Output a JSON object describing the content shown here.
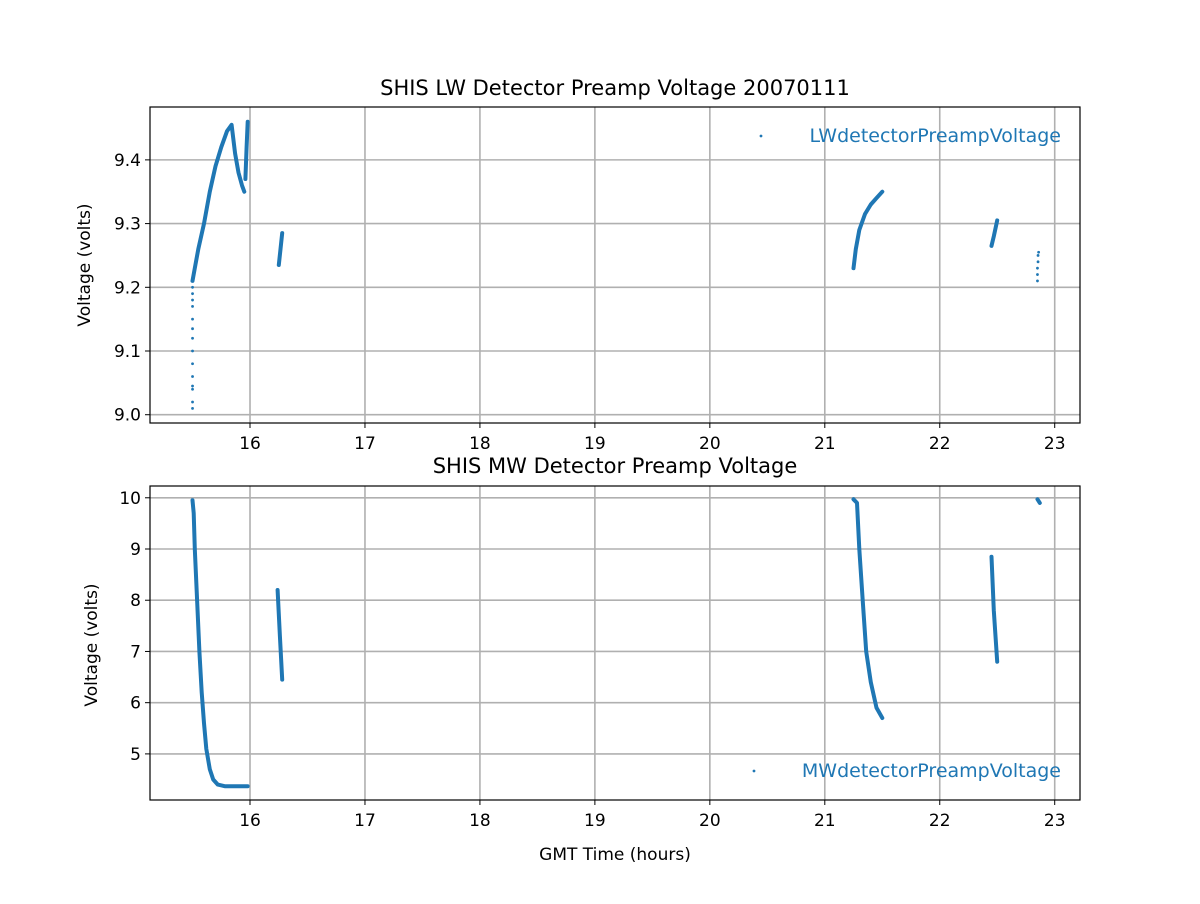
{
  "chart_data": [
    {
      "type": "scatter",
      "title": "SHIS LW Detector Preamp Voltage 20070111",
      "xlabel": "",
      "ylabel": "Voltage (volts)",
      "xlim": [
        15.13,
        23.22
      ],
      "ylim": [
        8.987,
        9.483
      ],
      "xticks": [
        16,
        17,
        18,
        19,
        20,
        21,
        22,
        23
      ],
      "yticks": [
        9.0,
        9.1,
        9.2,
        9.3,
        9.4
      ],
      "ytick_labels": [
        "9.0",
        "9.1",
        "9.2",
        "9.3",
        "9.4"
      ],
      "grid": true,
      "legend": {
        "label": "LWdetectorPreampVoltage",
        "placement": "top-right"
      },
      "color": "#1f77b4",
      "series": [
        {
          "name": "LWdetectorPreampVoltage",
          "segments": [
            {
              "style": "dots",
              "x": [
                15.5,
                15.5,
                15.5,
                15.5,
                15.5,
                15.5,
                15.5,
                15.5,
                15.5,
                15.5,
                15.5,
                15.5,
                15.5,
                15.5
              ],
              "y": [
                9.01,
                9.02,
                9.04,
                9.045,
                9.06,
                9.08,
                9.1,
                9.12,
                9.135,
                9.15,
                9.17,
                9.18,
                9.19,
                9.2
              ]
            },
            {
              "style": "line",
              "x": [
                15.5,
                15.52,
                15.55,
                15.6,
                15.65,
                15.7,
                15.75,
                15.8,
                15.84,
                15.87,
                15.9,
                15.93,
                15.95
              ],
              "y": [
                9.21,
                9.23,
                9.26,
                9.3,
                9.35,
                9.39,
                9.42,
                9.445,
                9.455,
                9.41,
                9.38,
                9.36,
                9.35
              ]
            },
            {
              "style": "line",
              "x": [
                15.96,
                15.97,
                15.98
              ],
              "y": [
                9.37,
                9.42,
                9.46
              ]
            },
            {
              "style": "line",
              "x": [
                16.25,
                16.265,
                16.28
              ],
              "y": [
                9.235,
                9.26,
                9.285
              ]
            },
            {
              "style": "line",
              "x": [
                21.25,
                21.27,
                21.3,
                21.35,
                21.4,
                21.45,
                21.5
              ],
              "y": [
                9.23,
                9.26,
                9.29,
                9.315,
                9.33,
                9.34,
                9.35
              ]
            },
            {
              "style": "line",
              "x": [
                22.45,
                22.47,
                22.5
              ],
              "y": [
                9.265,
                9.28,
                9.305
              ]
            },
            {
              "style": "dots",
              "x": [
                22.85,
                22.85,
                22.85,
                22.855,
                22.855,
                22.86
              ],
              "y": [
                9.21,
                9.22,
                9.23,
                9.24,
                9.25,
                9.255
              ]
            }
          ]
        }
      ]
    },
    {
      "type": "scatter",
      "title": "SHIS MW Detector Preamp Voltage",
      "xlabel": "GMT Time (hours)",
      "ylabel": "Voltage (volts)",
      "xlim": [
        15.13,
        23.22
      ],
      "ylim": [
        4.1,
        10.23
      ],
      "xticks": [
        16,
        17,
        18,
        19,
        20,
        21,
        22,
        23
      ],
      "yticks": [
        5,
        6,
        7,
        8,
        9,
        10
      ],
      "ytick_labels": [
        "5",
        "6",
        "7",
        "8",
        "9",
        "10"
      ],
      "grid": true,
      "legend": {
        "label": "MWdetectorPreampVoltage",
        "placement": "bottom-right"
      },
      "color": "#1f77b4",
      "series": [
        {
          "name": "MWdetectorPreampVoltage",
          "segments": [
            {
              "style": "line",
              "x": [
                15.5,
                15.51,
                15.52,
                15.54,
                15.56,
                15.58,
                15.6,
                15.62,
                15.65,
                15.68,
                15.72,
                15.78,
                15.9,
                15.98
              ],
              "y": [
                9.95,
                9.7,
                9.0,
                8.0,
                7.0,
                6.2,
                5.6,
                5.1,
                4.7,
                4.5,
                4.4,
                4.37,
                4.37,
                4.37
              ]
            },
            {
              "style": "line",
              "x": [
                16.24,
                16.26,
                16.28
              ],
              "y": [
                8.2,
                7.3,
                6.45
              ]
            },
            {
              "style": "line",
              "x": [
                21.25,
                21.28,
                21.3,
                21.33,
                21.36,
                21.4,
                21.45,
                21.5
              ],
              "y": [
                9.97,
                9.9,
                9.0,
                8.0,
                7.0,
                6.4,
                5.9,
                5.7
              ]
            },
            {
              "style": "line",
              "x": [
                22.45,
                22.47,
                22.5
              ],
              "y": [
                8.85,
                7.8,
                6.8
              ]
            },
            {
              "style": "line",
              "x": [
                22.85,
                22.87
              ],
              "y": [
                9.97,
                9.9
              ]
            }
          ]
        }
      ]
    }
  ]
}
